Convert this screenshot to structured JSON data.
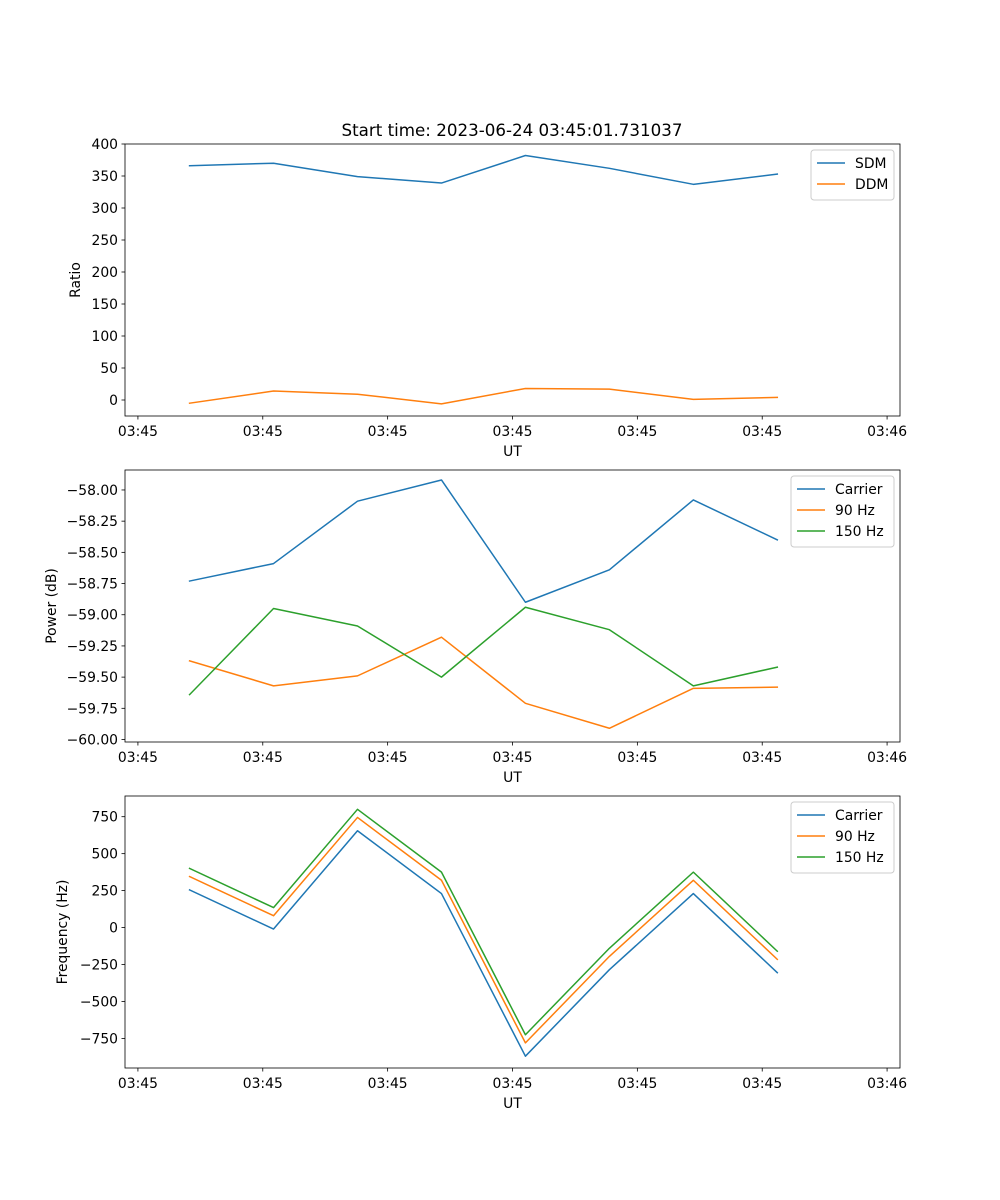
{
  "figure": {
    "title": "Start time: 2023-06-24 03:45:01.731037"
  },
  "chart_data": [
    {
      "type": "line",
      "title": "Start time: 2023-06-24 03:45:01.731037",
      "xlabel": "UT",
      "ylabel": "Ratio",
      "x_tick_labels": [
        "03:45",
        "03:45",
        "03:45",
        "03:45",
        "03:45",
        "03:45",
        "03:46"
      ],
      "xlim": [
        0,
        12
      ],
      "x": [
        1,
        2.3,
        3.6,
        4.9,
        6.2,
        7.5,
        8.8,
        10.1
      ],
      "ylim": [
        -25,
        400
      ],
      "y_ticks": [
        0,
        50,
        100,
        150,
        200,
        250,
        300,
        350,
        400
      ],
      "y_tick_labels": [
        "0",
        "50",
        "100",
        "150",
        "200",
        "250",
        "300",
        "350",
        "400"
      ],
      "legend": "top-right",
      "grid": false,
      "series": [
        {
          "name": "SDM",
          "color": "#1f77b4",
          "values": [
            366,
            370,
            349,
            339,
            382,
            362,
            337,
            353
          ]
        },
        {
          "name": "DDM",
          "color": "#ff7f0e",
          "values": [
            -5,
            14,
            9,
            -6,
            18,
            17,
            1,
            4
          ]
        }
      ]
    },
    {
      "type": "line",
      "xlabel": "UT",
      "ylabel": "Power (dB)",
      "x_tick_labels": [
        "03:45",
        "03:45",
        "03:45",
        "03:45",
        "03:45",
        "03:45",
        "03:46"
      ],
      "xlim": [
        0,
        12
      ],
      "x": [
        1,
        2.3,
        3.6,
        4.9,
        6.2,
        7.5,
        8.8,
        10.1
      ],
      "ylim": [
        -60.02,
        -57.84
      ],
      "y_ticks": [
        -60.0,
        -59.75,
        -59.5,
        -59.25,
        -59.0,
        -58.75,
        -58.5,
        -58.25,
        -58.0
      ],
      "y_tick_labels": [
        "−60.00",
        "−59.75",
        "−59.50",
        "−59.25",
        "−59.00",
        "−58.75",
        "−58.50",
        "−58.25",
        "−58.00"
      ],
      "legend": "top-right",
      "grid": false,
      "series": [
        {
          "name": "Carrier",
          "color": "#1f77b4",
          "values": [
            -58.73,
            -58.59,
            -58.09,
            -57.92,
            -58.9,
            -58.64,
            -58.08,
            -58.4
          ]
        },
        {
          "name": "90 Hz",
          "color": "#ff7f0e",
          "values": [
            -59.37,
            -59.57,
            -59.49,
            -59.18,
            -59.71,
            -59.91,
            -59.59,
            -59.58
          ]
        },
        {
          "name": "150 Hz",
          "color": "#2ca02c",
          "values": [
            -59.64,
            -58.95,
            -59.09,
            -59.5,
            -58.94,
            -59.12,
            -59.57,
            -59.42
          ]
        }
      ]
    },
    {
      "type": "line",
      "xlabel": "UT",
      "ylabel": "Frequency (Hz)",
      "x_tick_labels": [
        "03:45",
        "03:45",
        "03:45",
        "03:45",
        "03:45",
        "03:45",
        "03:46"
      ],
      "xlim": [
        0,
        12
      ],
      "x": [
        1,
        2.3,
        3.6,
        4.9,
        6.2,
        7.5,
        8.8,
        10.1
      ],
      "ylim": [
        -950,
        890
      ],
      "y_ticks": [
        -750,
        -500,
        -250,
        0,
        250,
        500,
        750
      ],
      "y_tick_labels": [
        "−750",
        "−500",
        "−250",
        "0",
        "250",
        "500",
        "750"
      ],
      "legend": "top-right",
      "grid": false,
      "series": [
        {
          "name": "Carrier",
          "color": "#1f77b4",
          "values": [
            255,
            -10,
            655,
            230,
            -870,
            -285,
            230,
            -305
          ]
        },
        {
          "name": "90 Hz",
          "color": "#ff7f0e",
          "values": [
            345,
            80,
            745,
            320,
            -780,
            -195,
            320,
            -215
          ]
        },
        {
          "name": "150 Hz",
          "color": "#2ca02c",
          "values": [
            400,
            135,
            800,
            375,
            -725,
            -140,
            375,
            -160
          ]
        }
      ]
    }
  ]
}
